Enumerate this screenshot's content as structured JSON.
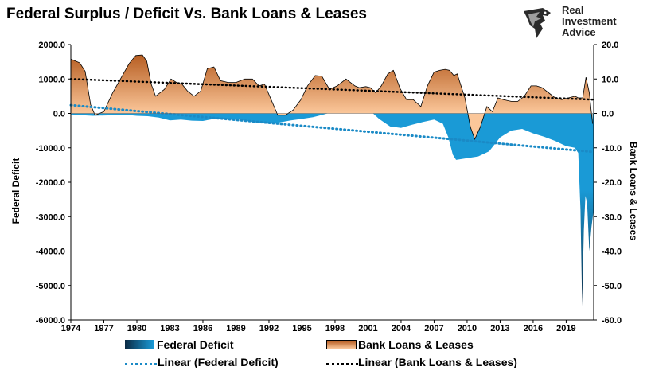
{
  "title": "Federal Surplus / Deficit Vs. Bank Loans & Leases",
  "logo": {
    "lines": [
      "Real",
      "Investment",
      "Advice"
    ]
  },
  "colors": {
    "bank_area_top": "#b45a1e",
    "bank_area_bottom": "#fbc79a",
    "deficit_area": "#1a9ad6",
    "deficit_dark": "#0b2a44",
    "trend_deficit": "#1a8ac6",
    "trend_bank": "#000000"
  },
  "legend": {
    "deficit": "Federal Deficit",
    "bank": "Bank Loans & Leases",
    "lin_deficit": "Linear (Federal Deficit)",
    "lin_bank": "Linear (Bank Loans & Leases)"
  },
  "chart_data": {
    "type": "area",
    "title": "Federal Surplus / Deficit Vs. Bank Loans & Leases",
    "ylabel": "Federal Deficit",
    "y2label": "Bank Loans & Leases",
    "ylim": [
      -6000,
      2000
    ],
    "y2lim": [
      -60,
      20
    ],
    "xlim": [
      1974,
      2021.5
    ],
    "xticks": [
      "1974",
      "1977",
      "1980",
      "1983",
      "1986",
      "1989",
      "1992",
      "1995",
      "1998",
      "2001",
      "2004",
      "2007",
      "2010",
      "2013",
      "2016",
      "2019"
    ],
    "yticks": [
      "2000.0",
      "1000.0",
      "0.0",
      "-1000.0",
      "-2000.0",
      "-3000.0",
      "-4000.0",
      "-5000.0",
      "-6000.0"
    ],
    "y2ticks": [
      "20.0",
      "10.0",
      "0.0",
      "-10.0",
      "-20.0",
      "-30.0",
      "-40.0",
      "-50.0",
      "-60.0"
    ],
    "grid": false,
    "legend_position": "bottom",
    "series": [
      {
        "name": "Federal Deficit",
        "axis": "left",
        "x": [
          1974,
          1975,
          1976,
          1977,
          1978,
          1979,
          1980,
          1981,
          1982,
          1983,
          1984,
          1985,
          1986,
          1987,
          1988,
          1989,
          1990,
          1991,
          1992,
          1993,
          1994,
          1995,
          1996,
          1997,
          1998,
          1999,
          2000,
          2001,
          2002,
          2003,
          2004,
          2005,
          2006,
          2007,
          2007.8,
          2008.3,
          2008.7,
          2009,
          2010,
          2011,
          2012,
          2013,
          2014,
          2015,
          2016,
          2017,
          2018,
          2019,
          2019.8,
          2020.1,
          2020.3,
          2020.45,
          2020.6,
          2020.75,
          2020.9,
          2021.1,
          2021.3,
          2021.5
        ],
        "values": [
          -30,
          -50,
          -70,
          -60,
          -50,
          -40,
          -70,
          -80,
          -120,
          -200,
          -180,
          -210,
          -220,
          -160,
          -160,
          -150,
          -220,
          -270,
          -300,
          -260,
          -200,
          -160,
          -110,
          -30,
          60,
          120,
          230,
          130,
          -160,
          -380,
          -420,
          -330,
          -250,
          -180,
          -300,
          -700,
          -1200,
          -1350,
          -1300,
          -1250,
          -1100,
          -700,
          -500,
          -450,
          -580,
          -680,
          -800,
          -950,
          -1000,
          -1150,
          -2800,
          -5600,
          -3400,
          -2400,
          -2600,
          -4000,
          -3300,
          -2800
        ]
      },
      {
        "name": "Bank Loans & Leases",
        "axis": "right",
        "x": [
          1974,
          1974.8,
          1975.3,
          1975.8,
          1976.2,
          1977,
          1977.8,
          1978.6,
          1979.3,
          1979.9,
          1980.5,
          1980.9,
          1981.3,
          1981.7,
          1982.5,
          1983.1,
          1983.6,
          1984.1,
          1984.6,
          1985.2,
          1985.8,
          1986.4,
          1987,
          1987.6,
          1988.3,
          1989,
          1989.8,
          1990.5,
          1991.1,
          1991.6,
          1992.2,
          1992.8,
          1993.5,
          1994.2,
          1994.9,
          1995.5,
          1996.2,
          1996.8,
          1997.5,
          1998.2,
          1999,
          1999.8,
          2000.2,
          2000.8,
          2001.2,
          2001.7,
          2002.2,
          2002.8,
          2003.3,
          2003.9,
          2004.5,
          2005.1,
          2005.8,
          2006.4,
          2007,
          2007.5,
          2008,
          2008.4,
          2008.8,
          2009.1,
          2009.4,
          2009.8,
          2010.3,
          2010.7,
          2011.2,
          2011.8,
          2012.3,
          2012.8,
          2013.3,
          2014,
          2014.6,
          2015.2,
          2015.8,
          2016.3,
          2016.8,
          2017.4,
          2018,
          2018.6,
          2019.2,
          2019.8,
          2020.1,
          2020.5,
          2020.8,
          2021.1,
          2021.4
        ],
        "values": [
          15.8,
          14.7,
          12.2,
          2.5,
          -0.5,
          0.5,
          6,
          10.5,
          14.5,
          16.8,
          17,
          15.2,
          8.5,
          5,
          7,
          10,
          9,
          8.5,
          6.5,
          5,
          6.5,
          13,
          13.5,
          9.5,
          9,
          9,
          10,
          10,
          8,
          8.5,
          4,
          -0.5,
          -0.5,
          1,
          4,
          8,
          11,
          10.8,
          7,
          8,
          10,
          8,
          7.5,
          7.8,
          7.5,
          6,
          8,
          11.5,
          12.5,
          7.3,
          4,
          4,
          2,
          8,
          12,
          12.5,
          12.8,
          12.5,
          11,
          11.5,
          8.5,
          4.5,
          -4,
          -7.5,
          -4,
          2,
          0.5,
          4.5,
          4,
          3.5,
          3.5,
          5,
          8,
          8,
          7.5,
          6,
          4.5,
          4,
          4.5,
          5,
          4.5,
          4.5,
          10.5,
          6,
          -3
        ]
      },
      {
        "name": "Linear (Federal Deficit)",
        "axis": "left",
        "x": [
          1974,
          2021.5
        ],
        "values": [
          240,
          -1120
        ]
      },
      {
        "name": "Linear (Bank Loans & Leases)",
        "axis": "right",
        "x": [
          1974,
          2021.5
        ],
        "values": [
          10,
          4
        ]
      }
    ]
  }
}
